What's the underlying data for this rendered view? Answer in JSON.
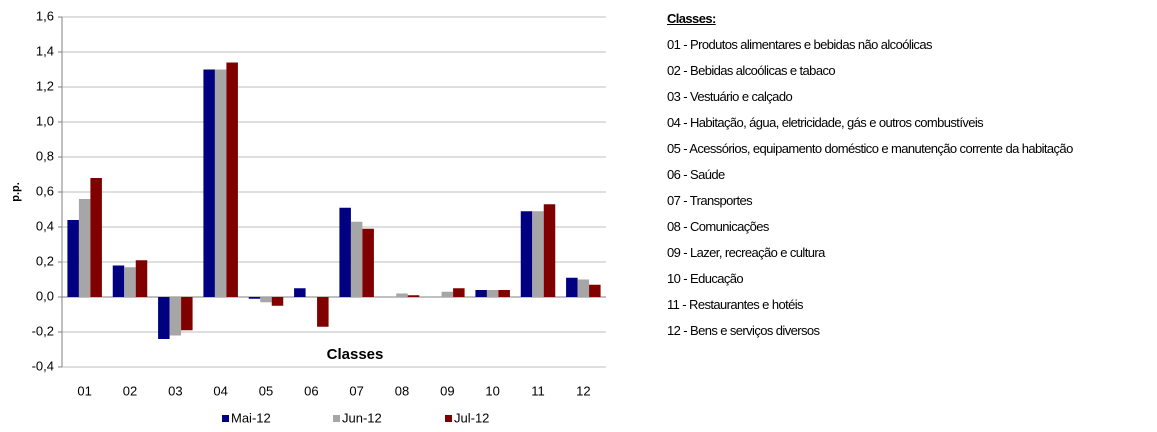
{
  "chart_data": {
    "type": "bar",
    "categories": [
      "01",
      "02",
      "03",
      "04",
      "05",
      "06",
      "07",
      "08",
      "09",
      "10",
      "11",
      "12"
    ],
    "series": [
      {
        "name": "Mai-12",
        "color": "#000080",
        "values": [
          0.44,
          0.18,
          -0.24,
          1.3,
          -0.01,
          0.05,
          0.51,
          0.0,
          0.0,
          0.04,
          0.49,
          0.11
        ]
      },
      {
        "name": "Jun-12",
        "color": "#a6a6a6",
        "values": [
          0.56,
          0.17,
          -0.22,
          1.3,
          -0.03,
          0.0,
          0.43,
          0.02,
          0.03,
          0.04,
          0.49,
          0.1
        ]
      },
      {
        "name": "Jul-12",
        "color": "#800000",
        "values": [
          0.68,
          0.21,
          -0.19,
          1.34,
          -0.05,
          -0.17,
          0.39,
          0.01,
          0.05,
          0.04,
          0.53,
          0.07
        ]
      }
    ],
    "ylim": [
      -0.4,
      1.6
    ],
    "yticks": [
      {
        "value": -0.4,
        "label": "-0,4"
      },
      {
        "value": -0.2,
        "label": "-0,2"
      },
      {
        "value": 0,
        "label": "0,0"
      },
      {
        "value": 0.2,
        "label": "0,2"
      },
      {
        "value": 0.4,
        "label": "0,4"
      },
      {
        "value": 0.6,
        "label": "0,6"
      },
      {
        "value": 0.8,
        "label": "0,8"
      },
      {
        "value": 1.0,
        "label": "1,0"
      },
      {
        "value": 1.2,
        "label": "1,2"
      },
      {
        "value": 1.4,
        "label": "1,4"
      },
      {
        "value": 1.6,
        "label": "1,6"
      }
    ],
    "xlabel": "Classes",
    "ylabel": "p.p.",
    "grid": true,
    "legend": "bottom"
  },
  "classes_panel": {
    "title": "Classes:",
    "items": [
      "01 - Produtos alimentares e bebidas não alcoólicas",
      "02 - Bebidas alcoólicas e tabaco",
      "03 - Vestuário e calçado",
      "04 - Habitação, água, eletricidade, gás e outros combustíveis",
      "05 - Acessórios, equipamento doméstico e manutenção corrente da habitação",
      "06 - Saúde",
      "07 - Transportes",
      "08 - Comunicações",
      "09 - Lazer, recreação e cultura",
      "10 - Educação",
      "11 - Restaurantes e hotéis",
      "12 - Bens e serviços diversos"
    ]
  }
}
